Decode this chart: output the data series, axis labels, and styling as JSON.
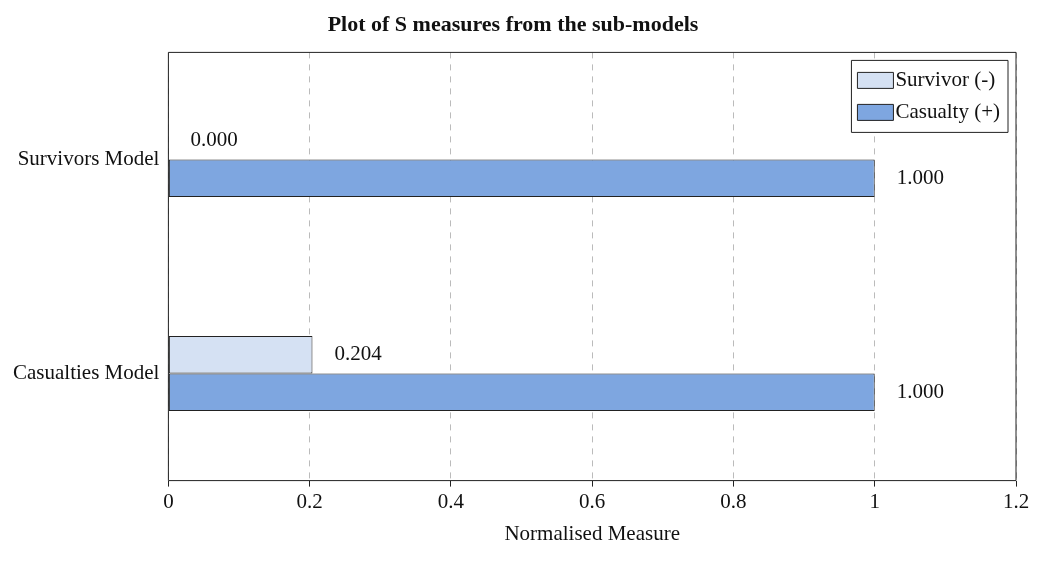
{
  "chart_data": {
    "type": "bar",
    "orientation": "horizontal",
    "title": "Plot of S measures from the sub-models",
    "xlabel": "Normalised Measure",
    "categories": [
      "Survivors Model",
      "Casualties Model"
    ],
    "series": [
      {
        "name": "Survivor (-)",
        "color": "#d5e1f3",
        "values": [
          0,
          0.204
        ],
        "value_labels": [
          "0.000",
          "0.204"
        ]
      },
      {
        "name": "Casualty (+)",
        "color": "#7ea6e0",
        "values": [
          1,
          1
        ],
        "value_labels": [
          "1.000",
          "1.000"
        ]
      }
    ],
    "xlim": [
      0,
      1.2
    ],
    "xticks": [
      0,
      0.2,
      0.4,
      0.6,
      0.8,
      1,
      1.2
    ],
    "grid": "x",
    "legend": "top right"
  }
}
